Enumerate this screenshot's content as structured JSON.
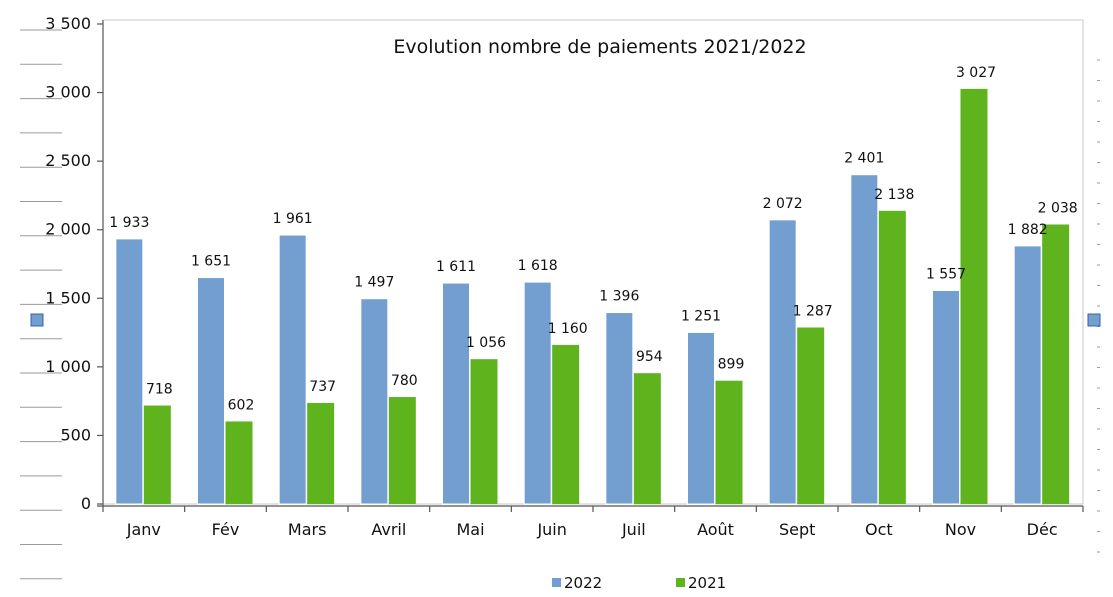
{
  "chart_data": {
    "type": "bar",
    "title": "Evolution nombre de paiements 2021/2022",
    "categories": [
      "Janv",
      "Fév",
      "Mars",
      "Avril",
      "Mai",
      "Juin",
      "Juil",
      "Août",
      "Sept",
      "Oct",
      "Nov",
      "Déc"
    ],
    "series": [
      {
        "name": "2022",
        "color": "#729fcf",
        "values": [
          1933,
          1651,
          1961,
          1497,
          1611,
          1618,
          1396,
          1251,
          2072,
          2401,
          1557,
          1882
        ],
        "labels": [
          "1 933",
          "1 651",
          "1 961",
          "1 497",
          "1 611",
          "1 618",
          "1 396",
          "1 251",
          "2 072",
          "2 401",
          "1 557",
          "1 882"
        ]
      },
      {
        "name": "2021",
        "color": "#5fb41e",
        "values": [
          718,
          602,
          737,
          780,
          1056,
          1160,
          954,
          899,
          1287,
          2138,
          3027,
          2038
        ],
        "labels": [
          "718",
          "602",
          "737",
          "780",
          "1 056",
          "1 160",
          "954",
          "899",
          "1 287",
          "2 138",
          "3 027",
          "2 038"
        ]
      }
    ],
    "yticks": [
      0,
      500,
      1000,
      1500,
      2000,
      2500,
      3000,
      3500
    ],
    "ytick_labels": [
      "0",
      "500",
      "1 000",
      "1 500",
      "2 000",
      "2 500",
      "3 000",
      "3 500"
    ],
    "ylim": [
      0,
      3500
    ],
    "xlabel": "",
    "ylabel": "",
    "legend_position": "bottom",
    "grid": false
  }
}
